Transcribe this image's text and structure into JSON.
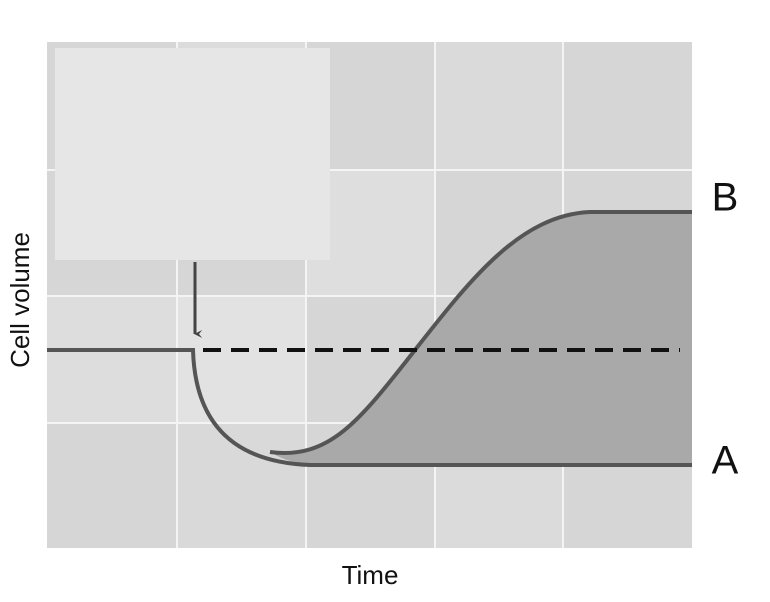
{
  "labels": {
    "y_axis": "Cell volume",
    "x_axis": "Time",
    "curve_b": "B",
    "curve_a": "A"
  }
}
